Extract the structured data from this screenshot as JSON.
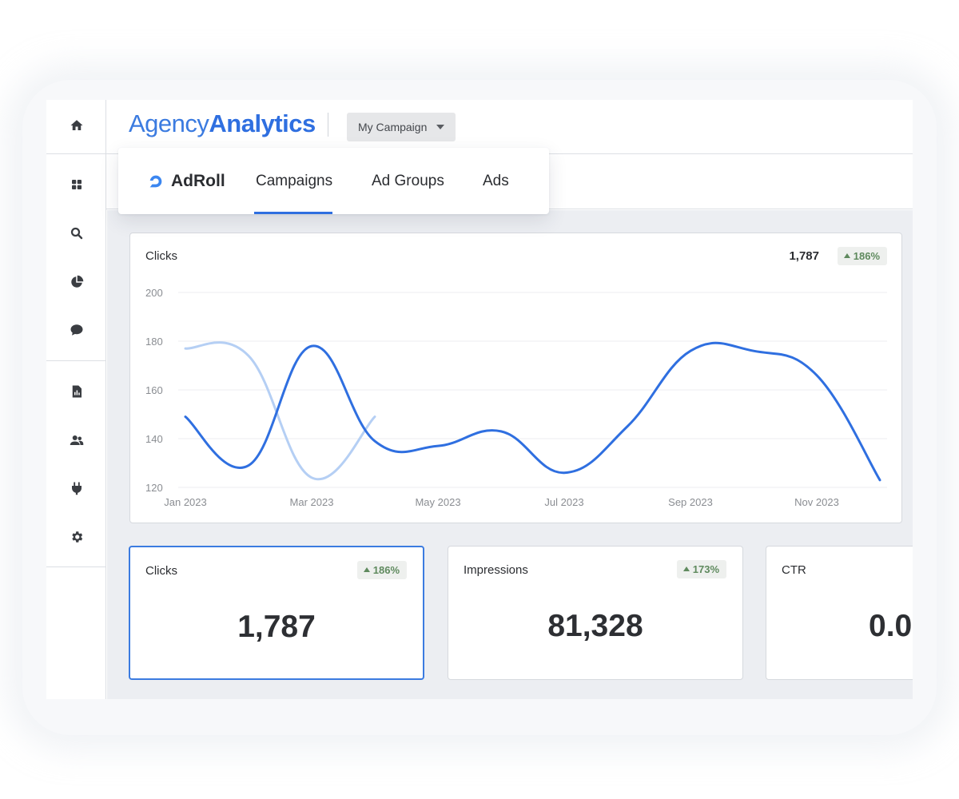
{
  "header": {
    "logo_part1": "Agency",
    "logo_part2": "Analytics",
    "campaign_select": "My Campaign"
  },
  "sidebar": {
    "icons": [
      "home-icon",
      "dashboard-icon",
      "search-icon",
      "pie-chart-icon",
      "chat-icon",
      "report-icon",
      "users-icon",
      "plug-icon",
      "gear-icon"
    ]
  },
  "nav": {
    "brand": "AdRoll",
    "tabs": [
      {
        "label": "Campaigns",
        "active": true
      },
      {
        "label": "Ad Groups",
        "active": false
      },
      {
        "label": "Ads",
        "active": false
      }
    ]
  },
  "chart_card": {
    "title": "Clicks",
    "total": "1,787",
    "change": "186%"
  },
  "chart_data": {
    "type": "line",
    "x_tick_labels": [
      "Jan 2023",
      "Mar 2023",
      "May 2023",
      "Jul 2023",
      "Sep 2023",
      "Nov 2023"
    ],
    "y_tick_labels": [
      "200",
      "180",
      "160",
      "140",
      "120"
    ],
    "ylim": [
      120,
      200
    ],
    "xlim": [
      "2023-01",
      "2023-12"
    ],
    "grid": true,
    "series": [
      {
        "color": "#2f6fe0",
        "points": [
          {
            "x": "2023-01",
            "y": 149
          },
          {
            "x": "2023-02",
            "y": 129
          },
          {
            "x": "2023-03",
            "y": 178
          },
          {
            "x": "2023-04",
            "y": 139
          },
          {
            "x": "2023-05",
            "y": 137
          },
          {
            "x": "2023-06",
            "y": 143
          },
          {
            "x": "2023-07",
            "y": 126
          },
          {
            "x": "2023-08",
            "y": 145
          },
          {
            "x": "2023-09",
            "y": 176
          },
          {
            "x": "2023-10",
            "y": 176
          },
          {
            "x": "2023-11",
            "y": 166
          },
          {
            "x": "2023-12",
            "y": 123
          }
        ]
      },
      {
        "color": "#b5cff4",
        "points": [
          {
            "x": "2023-01",
            "y": 177
          },
          {
            "x": "2023-02",
            "y": 174
          },
          {
            "x": "2023-03",
            "y": 124
          },
          {
            "x": "2023-04",
            "y": 149
          }
        ]
      }
    ]
  },
  "kpis": [
    {
      "label": "Clicks",
      "value": "1,787",
      "change": "186%",
      "selected": true
    },
    {
      "label": "Impressions",
      "value": "81,328",
      "change": "173%",
      "selected": false
    },
    {
      "label": "CTR",
      "value": "0.0",
      "change": "",
      "selected": false
    }
  ],
  "colors": {
    "accent": "#2f6fe0",
    "positive": "#5f8a5e"
  }
}
